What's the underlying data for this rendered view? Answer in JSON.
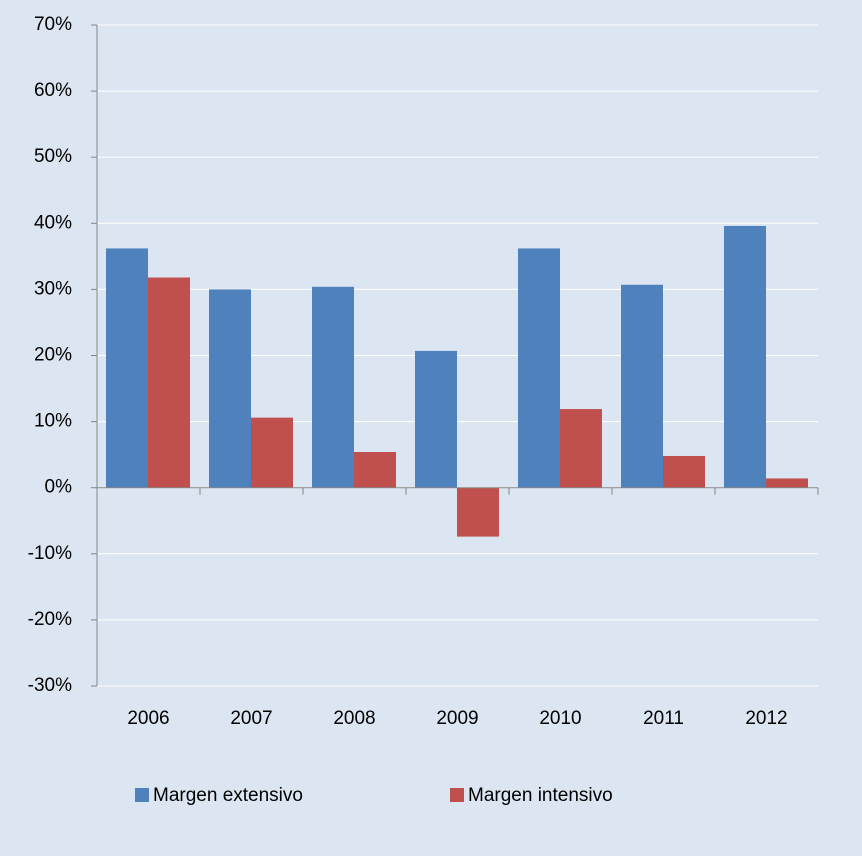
{
  "chart_data": {
    "type": "bar",
    "categories": [
      "2006",
      "2007",
      "2008",
      "2009",
      "2010",
      "2011",
      "2012"
    ],
    "series": [
      {
        "name": "Margen extensivo",
        "color": "#4f81bd",
        "values": [
          36.2,
          30,
          30.4,
          20.7,
          36.2,
          30.7,
          39.6
        ]
      },
      {
        "name": "Margen intensivo",
        "color": "#c0504d",
        "values": [
          31.8,
          10.6,
          5.4,
          -7.4,
          11.9,
          4.8,
          1.4
        ]
      }
    ],
    "ylim": [
      -30,
      70
    ],
    "yticks": [
      {
        "value": -30,
        "label": "-30%"
      },
      {
        "value": -20,
        "label": "-20%"
      },
      {
        "value": -10,
        "label": "-10%"
      },
      {
        "value": 0,
        "label": "0%"
      },
      {
        "value": 10,
        "label": "10%"
      },
      {
        "value": 20,
        "label": "20%"
      },
      {
        "value": 30,
        "label": "30%"
      },
      {
        "value": 40,
        "label": "40%"
      },
      {
        "value": 50,
        "label": "50%"
      },
      {
        "value": 60,
        "label": "60%"
      },
      {
        "value": 70,
        "label": "70%"
      }
    ],
    "grid": true,
    "legend": "bottom"
  }
}
